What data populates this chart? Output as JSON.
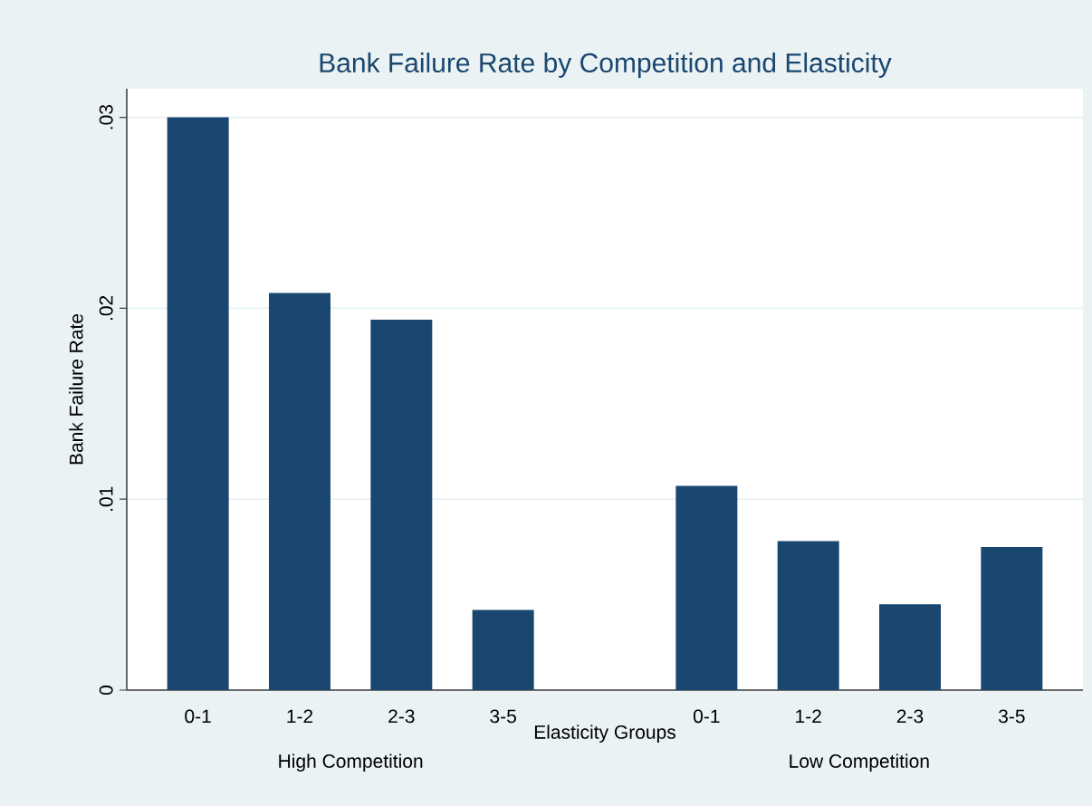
{
  "chart_data": {
    "type": "bar",
    "title": "Bank Failure Rate by Competition and Elasticity",
    "xlabel": "Elasticity Groups",
    "ylabel": "Bank Failure Rate",
    "categories": [
      "0-1",
      "1-2",
      "2-3",
      "3-5",
      null,
      "0-1",
      "1-2",
      "2-3",
      "3-5"
    ],
    "values": [
      0.03,
      0.0208,
      0.0194,
      0.0042,
      null,
      0.0107,
      0.0078,
      0.0045,
      0.0075
    ],
    "color": "#1a476f",
    "ylim": [
      0,
      0.0315
    ],
    "yticks": [
      0,
      {
        "value": 0.01,
        "label": ".01"
      },
      {
        "value": 0.02,
        "label": ".02"
      },
      {
        "value": 0.03,
        "label": ".03"
      }
    ],
    "grid": "y",
    "annotations": [
      "High Competition",
      "Low Competition"
    ]
  }
}
